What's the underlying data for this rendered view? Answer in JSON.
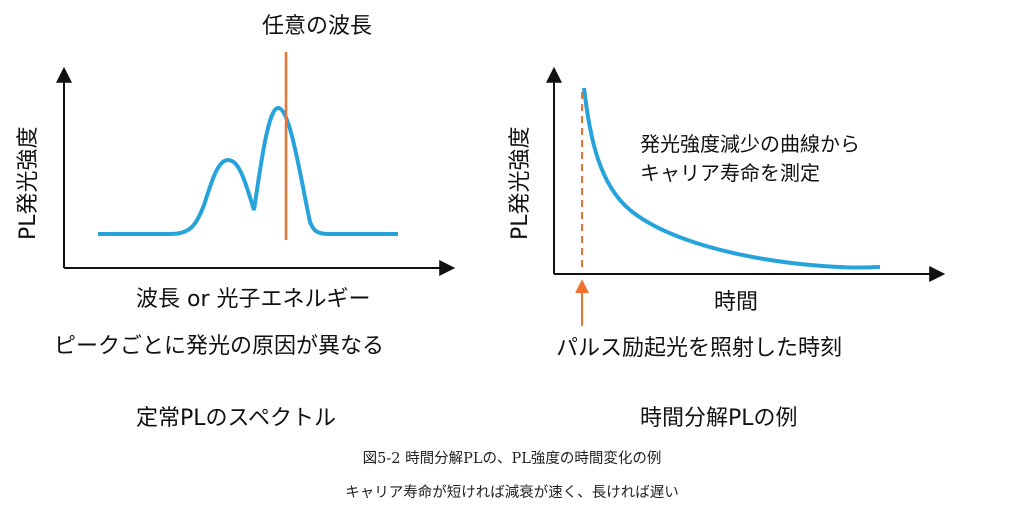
{
  "colors": {
    "curve": "#27a3dc",
    "marker": "#f07030",
    "axis": "#111111"
  },
  "left_panel": {
    "marker_label": "任意の波長",
    "y_axis_label": "PL発光強度",
    "x_axis_label": "波長 or 光子エネルギー",
    "note": "ピークごとに発光の原因が異なる",
    "title": "定常PLのスペクトル"
  },
  "right_panel": {
    "y_axis_label": "PL発光強度",
    "annotation_line1": "発光強度減少の曲線から",
    "annotation_line2": "キャリア寿命を測定",
    "x_axis_label": "時間",
    "excitation_label": "パルス励起光を照射した時刻",
    "title": "時間分解PLの例"
  },
  "caption": {
    "line1": "図5-2 時間分解PLの、PL強度の時間変化の例",
    "line2": "キャリア寿命が短ければ減衰が速く、長ければ遅い"
  }
}
